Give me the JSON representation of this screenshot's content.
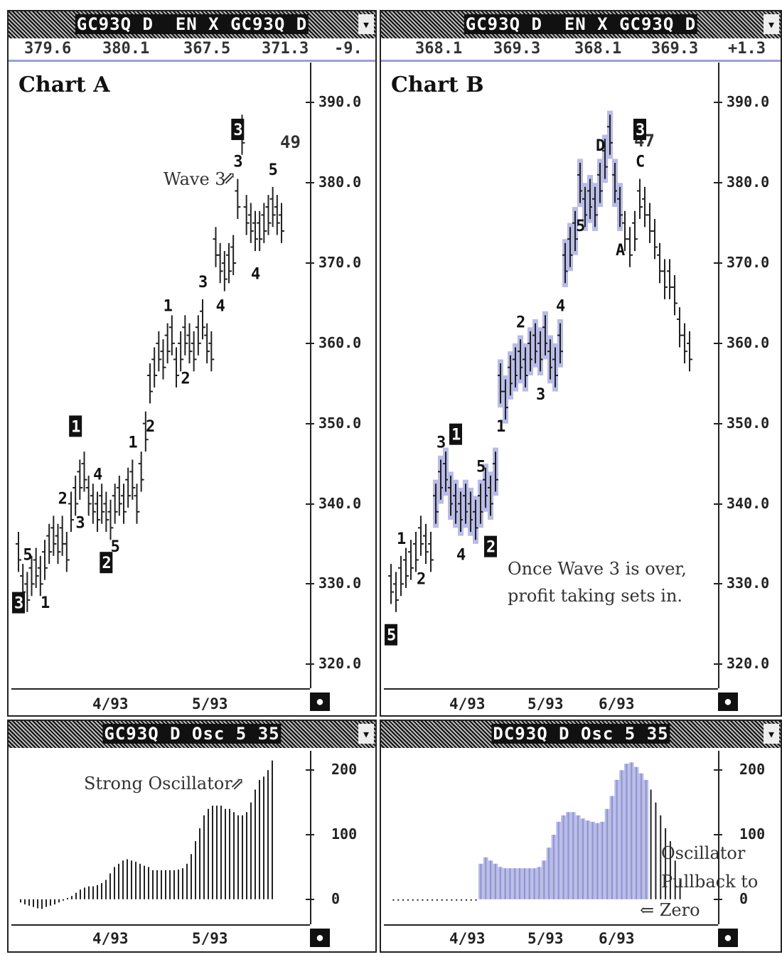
{
  "chart_data": [
    {
      "type": "line",
      "title": "Chart A",
      "titlebar": "GC93Q D  EN X GC93Q D",
      "quote": [
        "379.6",
        "380.1",
        "367.5",
        "371.3",
        "-9."
      ],
      "ylim": [
        317,
        395
      ],
      "yticks": [
        "390.0",
        "380.0",
        "370.0",
        "360.0",
        "350.0",
        "340.0",
        "330.0",
        "320.0"
      ],
      "xticks": [
        "4/93",
        "5/93"
      ],
      "annotations": [
        "Wave 3",
        "49"
      ],
      "wave_labels": [
        "5",
        "1",
        "2",
        "3",
        "4",
        "5",
        "1",
        "2",
        "1",
        "2",
        "3",
        "4",
        "3",
        "4",
        "5"
      ],
      "boxed_labels": [
        "3",
        "1",
        "2",
        "3"
      ],
      "x": [
        0,
        1,
        2,
        3,
        4,
        5,
        6,
        7,
        8,
        9,
        10,
        11,
        12,
        13,
        14,
        15,
        16,
        17,
        18,
        19,
        20,
        21,
        22,
        23,
        24,
        25,
        26,
        27,
        28,
        29,
        30,
        31,
        32,
        33,
        34,
        35,
        36,
        37,
        38,
        39,
        40,
        41,
        42,
        43,
        44,
        45,
        46,
        47,
        48,
        49,
        50,
        51,
        52,
        53,
        54,
        55,
        56,
        57,
        58,
        59,
        60
      ],
      "values": [
        334,
        330,
        329,
        331,
        332,
        331,
        333,
        335,
        336,
        335,
        336,
        334,
        339,
        341,
        343,
        344,
        341,
        340,
        339,
        340,
        339,
        338,
        340,
        341,
        340,
        342,
        343,
        340,
        344,
        349,
        355,
        357,
        359,
        358,
        360,
        361,
        357,
        359,
        361,
        360,
        359,
        361,
        363,
        360,
        359,
        372,
        370,
        369,
        370,
        371,
        378,
        386,
        376,
        375,
        374,
        374,
        375,
        376,
        377,
        376,
        375
      ]
    },
    {
      "type": "line",
      "title": "Chart B",
      "titlebar": "GC93Q D  EN X GC93Q D",
      "quote": [
        "368.1",
        "369.3",
        "368.1",
        "369.3",
        "+1.3"
      ],
      "ylim": [
        317,
        395
      ],
      "yticks": [
        "390.0",
        "380.0",
        "370.0",
        "360.0",
        "350.0",
        "340.0",
        "330.0",
        "320.0"
      ],
      "xticks": [
        "4/93",
        "5/93",
        "6/93"
      ],
      "annotations": [
        "47",
        "Once Wave 3 is over,",
        "profit taking sets in."
      ],
      "wave_labels": [
        "1",
        "2",
        "3",
        "4",
        "5",
        "1",
        "2",
        "3",
        "4",
        "5",
        "D",
        "A",
        "C"
      ],
      "boxed_labels": [
        "5",
        "1",
        "2",
        "3"
      ],
      "x": [
        0,
        1,
        2,
        3,
        4,
        5,
        6,
        7,
        8,
        9,
        10,
        11,
        12,
        13,
        14,
        15,
        16,
        17,
        18,
        19,
        20,
        21,
        22,
        23,
        24,
        25,
        26,
        27,
        28,
        29,
        30,
        31,
        32,
        33,
        34,
        35,
        36,
        37,
        38,
        39,
        40,
        41,
        42,
        43,
        44,
        45,
        46,
        47,
        48,
        49,
        50,
        51,
        52,
        53,
        54,
        55,
        56,
        57,
        58,
        59,
        60
      ],
      "values": [
        330,
        329,
        331,
        332,
        333,
        334,
        336,
        335,
        334,
        340,
        343,
        344,
        341,
        340,
        339,
        340,
        339,
        338,
        340,
        342,
        341,
        344,
        355,
        353,
        356,
        357,
        358,
        357,
        359,
        360,
        359,
        361,
        358,
        357,
        360,
        370,
        372,
        374,
        380,
        377,
        378,
        377,
        380,
        383,
        386,
        380,
        377,
        374,
        372,
        374,
        378,
        377,
        375,
        373,
        370,
        368,
        368,
        366,
        362,
        360,
        359
      ]
    },
    {
      "type": "bar",
      "title": "GC93Q D Osc 5 35",
      "ylim": [
        -30,
        230
      ],
      "yticks": [
        "200",
        "100",
        "0"
      ],
      "xticks": [
        "4/93",
        "5/93"
      ],
      "annotations": [
        "Strong Oscillator"
      ],
      "values": [
        -5,
        -8,
        -10,
        -12,
        -14,
        -15,
        -12,
        -10,
        -8,
        -5,
        -2,
        2,
        5,
        10,
        15,
        18,
        20,
        20,
        22,
        25,
        30,
        40,
        50,
        55,
        60,
        62,
        60,
        58,
        55,
        52,
        50,
        45,
        45,
        45,
        45,
        45,
        45,
        46,
        48,
        55,
        70,
        90,
        110,
        130,
        140,
        145,
        145,
        145,
        140,
        140,
        135,
        130,
        130,
        135,
        150,
        170,
        185,
        190,
        200,
        215
      ]
    },
    {
      "type": "bar",
      "title": "DC93Q D Osc 5 35",
      "ylim": [
        -30,
        230
      ],
      "yticks": [
        "200",
        "100",
        "0"
      ],
      "xticks": [
        "4/93",
        "5/93",
        "6/93"
      ],
      "annotations": [
        "Oscillator",
        "Pullback to",
        "⇐ Zero"
      ],
      "values": [
        -2,
        -2,
        -2,
        -2,
        -2,
        -2,
        -2,
        -2,
        -2,
        -2,
        -2,
        -2,
        -2,
        -2,
        -2,
        -2,
        -2,
        -2,
        55,
        65,
        60,
        55,
        50,
        48,
        48,
        48,
        48,
        48,
        48,
        48,
        50,
        60,
        80,
        100,
        120,
        130,
        135,
        135,
        130,
        125,
        122,
        120,
        118,
        120,
        140,
        160,
        185,
        200,
        210,
        212,
        205,
        195,
        185,
        170,
        150,
        130,
        110,
        90,
        60,
        30
      ]
    }
  ]
}
